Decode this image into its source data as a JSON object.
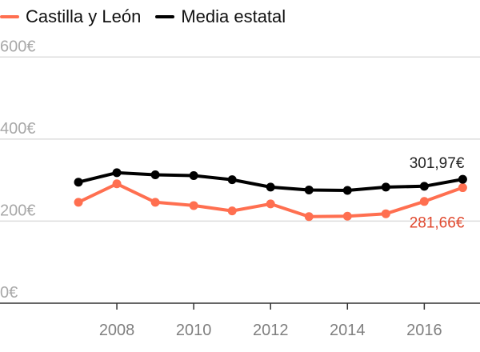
{
  "chart_data": {
    "type": "line",
    "title": "",
    "xlabel": "",
    "ylabel": "",
    "x": [
      2007,
      2008,
      2009,
      2010,
      2011,
      2012,
      2013,
      2014,
      2015,
      2016,
      2017
    ],
    "xticks": [
      "2008",
      "2010",
      "2012",
      "2014",
      "2016"
    ],
    "xlim": [
      2006,
      2017.2
    ],
    "ylim": [
      0,
      700
    ],
    "yticks": [
      {
        "value": 0,
        "label": "0€"
      },
      {
        "value": 200,
        "label": "200€"
      },
      {
        "value": 400,
        "label": "400€"
      },
      {
        "value": 600,
        "label": "600€"
      }
    ],
    "grid": true,
    "legend_position": "top-left",
    "series": [
      {
        "name": "Castilla y León",
        "color": "#ff6f50",
        "label_color": "#e0492f",
        "values": [
          246,
          291,
          246,
          238,
          225,
          242,
          211,
          212,
          218,
          248,
          281.66
        ],
        "end_label": "281,66€"
      },
      {
        "name": "Media estatal",
        "color": "#000000",
        "label_color": "#222222",
        "values": [
          295,
          318,
          313,
          311,
          301,
          283,
          276,
          275,
          283,
          285,
          301.97
        ],
        "end_label": "301,97€"
      }
    ]
  }
}
